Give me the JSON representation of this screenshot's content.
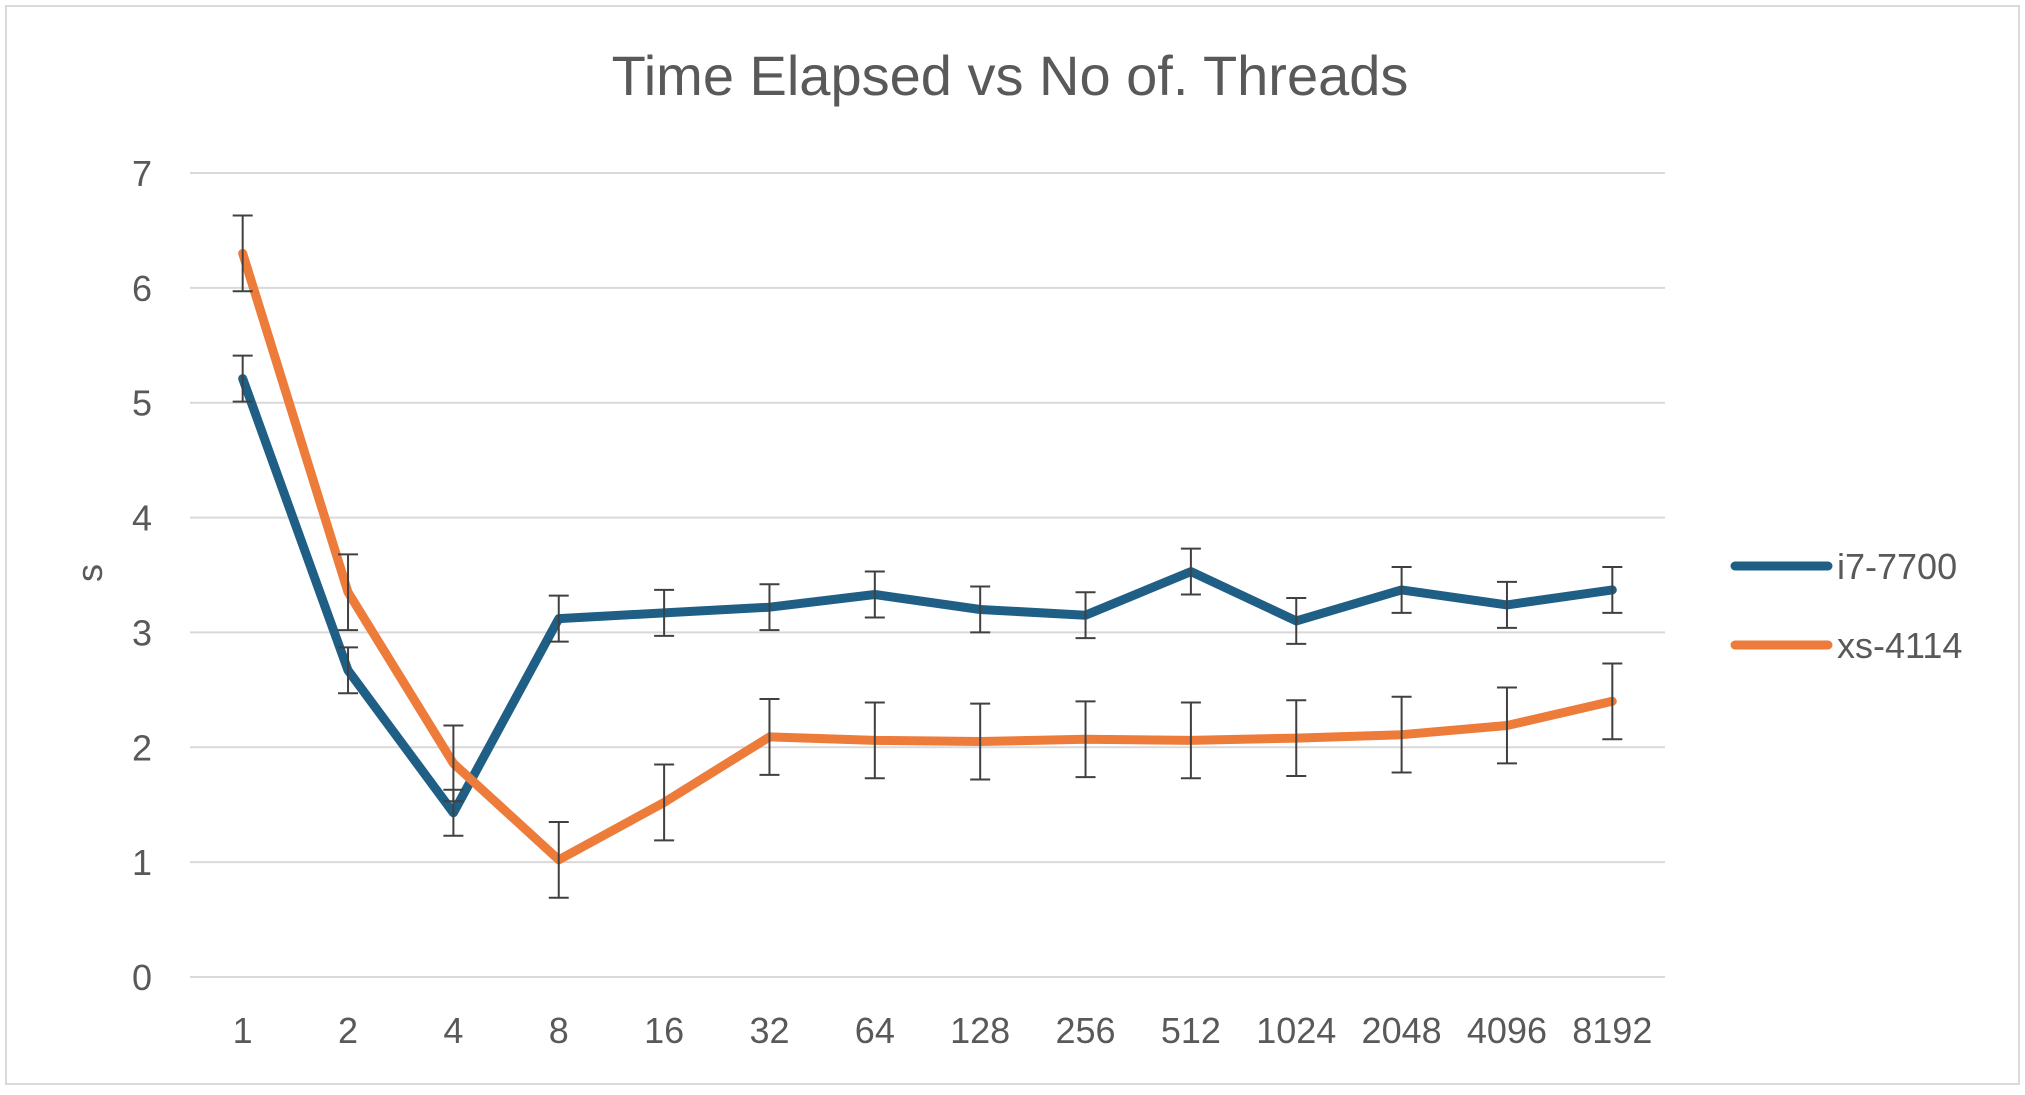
{
  "chart_data": {
    "type": "line",
    "title": "Time Elapsed vs No of. Threads",
    "xlabel": "",
    "ylabel": "s",
    "categories": [
      "1",
      "2",
      "4",
      "8",
      "16",
      "32",
      "64",
      "128",
      "256",
      "512",
      "1024",
      "2048",
      "4096",
      "8192"
    ],
    "ylim": [
      0,
      7
    ],
    "yticks": [
      0,
      1,
      2,
      3,
      4,
      5,
      6,
      7
    ],
    "grid": true,
    "legend_position": "right",
    "series": [
      {
        "name": "i7-7700",
        "color": "#1f5f86",
        "values": [
          5.21,
          2.67,
          1.43,
          3.12,
          3.17,
          3.22,
          3.33,
          3.2,
          3.15,
          3.53,
          3.1,
          3.37,
          3.24,
          3.37
        ],
        "error": [
          0.2,
          0.2,
          0.2,
          0.2,
          0.2,
          0.2,
          0.2,
          0.2,
          0.2,
          0.2,
          0.2,
          0.2,
          0.2,
          0.2
        ]
      },
      {
        "name": "xs-4114",
        "color": "#ed7b3a",
        "values": [
          6.3,
          3.35,
          1.86,
          1.02,
          1.52,
          2.09,
          2.06,
          2.05,
          2.07,
          2.06,
          2.08,
          2.11,
          2.19,
          2.4
        ],
        "error": [
          0.33,
          0.33,
          0.33,
          0.33,
          0.33,
          0.33,
          0.33,
          0.33,
          0.33,
          0.33,
          0.33,
          0.33,
          0.33,
          0.33
        ]
      }
    ]
  }
}
